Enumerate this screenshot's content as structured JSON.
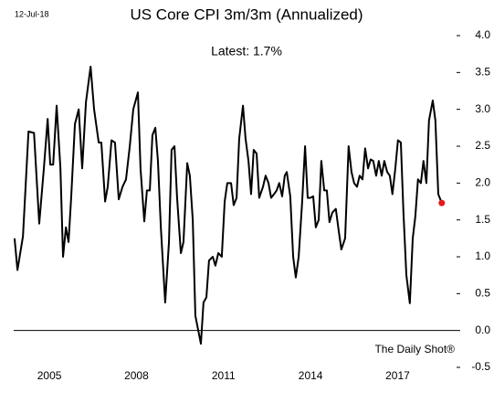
{
  "chart_data": {
    "type": "line",
    "title": "US Core CPI 3m/3m (Annualized)",
    "subtitle": "Latest:  1.7%",
    "date": "12-Jul-18",
    "source": "The Daily Shot®",
    "color": "#000000",
    "marker_color": "#e31a1c",
    "xlim": [
      2003.77,
      2019.03
    ],
    "xticks": [
      2005,
      2008,
      2011,
      2014,
      2017
    ],
    "ylim": [
      -0.5,
      4.0
    ],
    "yticks": [
      {
        "value": 4,
        "label": "4.0"
      },
      3.5,
      {
        "value": 3,
        "label": "3.0"
      },
      2.5,
      {
        "value": 2,
        "label": "2.0"
      },
      1.5,
      {
        "value": 1,
        "label": "1.0"
      },
      0.5,
      {
        "value": 0,
        "label": "0.0"
      },
      -0.5
    ],
    "hlines": [
      0
    ],
    "grid": false,
    "x": [
      2003.8,
      2003.9,
      2004.09,
      2004.28,
      2004.47,
      2004.65,
      2004.81,
      2004.94,
      2005.03,
      2005.13,
      2005.25,
      2005.38,
      2005.47,
      2005.57,
      2005.66,
      2005.75,
      2005.88,
      2006.01,
      2006.13,
      2006.26,
      2006.42,
      2006.54,
      2006.7,
      2006.79,
      2006.92,
      2007.01,
      2007.14,
      2007.26,
      2007.39,
      2007.52,
      2007.64,
      2007.77,
      2007.89,
      2008.05,
      2008.14,
      2008.27,
      2008.36,
      2008.46,
      2008.55,
      2008.65,
      2008.74,
      2008.84,
      2008.99,
      2009.12,
      2009.21,
      2009.31,
      2009.4,
      2009.53,
      2009.62,
      2009.75,
      2009.84,
      2009.94,
      2010.03,
      2010.13,
      2010.22,
      2010.31,
      2010.41,
      2010.5,
      2010.63,
      2010.72,
      2010.82,
      2010.94,
      2011.04,
      2011.13,
      2011.26,
      2011.35,
      2011.45,
      2011.54,
      2011.67,
      2011.76,
      2011.86,
      2011.95,
      2012.04,
      2012.14,
      2012.23,
      2012.36,
      2012.45,
      2012.55,
      2012.64,
      2012.74,
      2012.83,
      2012.92,
      2013.02,
      2013.11,
      2013.18,
      2013.3,
      2013.4,
      2013.49,
      2013.59,
      2013.71,
      2013.81,
      2013.9,
      2013.99,
      2014.09,
      2014.18,
      2014.28,
      2014.37,
      2014.47,
      2014.56,
      2014.65,
      2014.75,
      2014.87,
      2014.97,
      2015.06,
      2015.19,
      2015.31,
      2015.41,
      2015.5,
      2015.6,
      2015.69,
      2015.79,
      2015.88,
      2015.98,
      2016.07,
      2016.16,
      2016.26,
      2016.35,
      2016.45,
      2016.54,
      2016.64,
      2016.73,
      2016.82,
      2016.92,
      2017.01,
      2017.11,
      2017.2,
      2017.3,
      2017.42,
      2017.52,
      2017.61,
      2017.7,
      2017.8,
      2017.89,
      2017.99,
      2018.08,
      2018.21,
      2018.3,
      2018.4,
      2018.52
    ],
    "values": [
      1.25,
      0.82,
      1.28,
      2.7,
      2.68,
      1.45,
      2.2,
      2.87,
      2.25,
      2.25,
      3.05,
      2.2,
      1.0,
      1.4,
      1.2,
      1.8,
      2.8,
      3.0,
      2.2,
      3.1,
      3.58,
      3.0,
      2.55,
      2.55,
      1.75,
      1.95,
      2.58,
      2.55,
      1.78,
      1.95,
      2.05,
      2.5,
      3.0,
      3.23,
      2.2,
      1.48,
      1.9,
      1.9,
      2.65,
      2.75,
      2.3,
      1.4,
      0.38,
      1.2,
      2.45,
      2.5,
      1.8,
      1.05,
      1.2,
      2.27,
      2.1,
      1.5,
      0.2,
      0.0,
      -0.18,
      0.38,
      0.45,
      0.95,
      1.0,
      0.88,
      1.05,
      1.0,
      1.75,
      2.0,
      2.0,
      1.7,
      1.8,
      2.6,
      3.05,
      2.6,
      2.3,
      1.85,
      2.45,
      2.4,
      1.8,
      1.95,
      2.1,
      2.0,
      1.8,
      1.85,
      1.9,
      2.0,
      1.82,
      2.1,
      2.15,
      1.82,
      1.0,
      0.72,
      1.0,
      1.75,
      2.5,
      1.8,
      1.8,
      1.82,
      1.4,
      1.5,
      2.3,
      1.9,
      1.9,
      1.47,
      1.6,
      1.65,
      1.35,
      1.1,
      1.25,
      2.5,
      2.15,
      2.0,
      1.95,
      2.1,
      2.05,
      2.47,
      2.2,
      2.32,
      2.3,
      2.1,
      2.3,
      2.1,
      2.3,
      2.15,
      2.1,
      1.85,
      2.2,
      2.58,
      2.55,
      1.6,
      0.75,
      0.37,
      1.25,
      1.55,
      2.05,
      2.0,
      2.3,
      2.0,
      2.85,
      3.12,
      2.85,
      1.85,
      1.73
    ]
  }
}
